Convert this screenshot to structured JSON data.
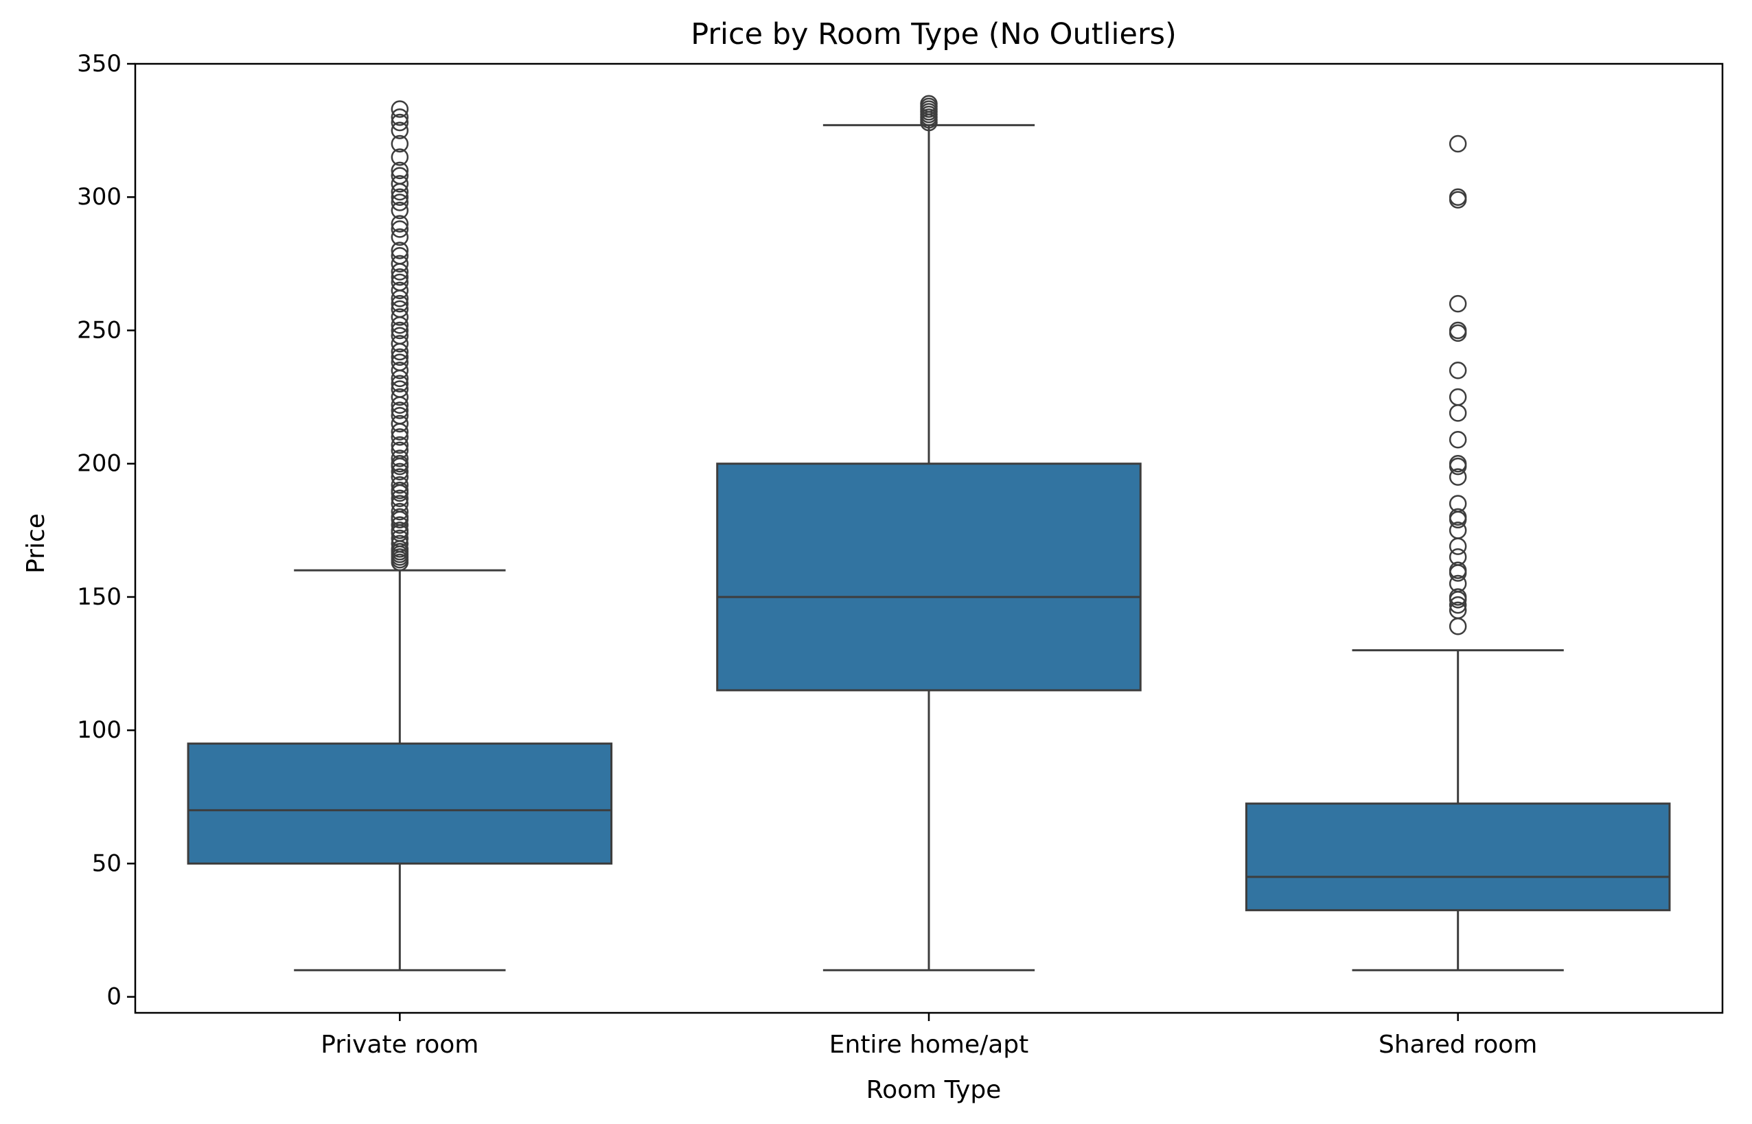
{
  "chart_data": {
    "type": "boxplot",
    "title": "Price by Room Type (No Outliers)",
    "xlabel": "Room Type",
    "ylabel": "Price",
    "ylim": [
      -6,
      350
    ],
    "yticks": [
      0,
      50,
      100,
      150,
      200,
      250,
      300,
      350
    ],
    "grid": false,
    "box_color": "#3274a1",
    "line_color": "#3d3d3d",
    "categories": [
      "Private room",
      "Entire home/apt",
      "Shared room"
    ],
    "boxes": [
      {
        "category": "Private room",
        "whisker_low": 10,
        "q1": 50,
        "median": 70,
        "q3": 95,
        "whisker_high": 160,
        "outliers": [
          163,
          164,
          165,
          166,
          167,
          168,
          170,
          172,
          174,
          175,
          177,
          179,
          180,
          182,
          185,
          187,
          189,
          190,
          192,
          195,
          197,
          199,
          200,
          202,
          205,
          207,
          210,
          212,
          215,
          218,
          220,
          222,
          225,
          228,
          230,
          232,
          235,
          238,
          240,
          242,
          245,
          248,
          250,
          252,
          255,
          258,
          260,
          262,
          265,
          268,
          270,
          272,
          275,
          278,
          280,
          285,
          288,
          290,
          295,
          298,
          300,
          302,
          305,
          308,
          310,
          315,
          320,
          325,
          328,
          330,
          333
        ]
      },
      {
        "category": "Entire home/apt",
        "whisker_low": 10,
        "q1": 115,
        "median": 150,
        "q3": 200,
        "whisker_high": 327,
        "outliers": [
          328,
          329,
          330,
          331,
          332,
          333,
          334,
          335
        ]
      },
      {
        "category": "Shared room",
        "whisker_low": 10,
        "q1": 32.5,
        "median": 45,
        "q3": 72.5,
        "whisker_high": 130,
        "outliers": [
          139,
          145,
          147,
          149,
          150,
          155,
          159,
          160,
          165,
          169,
          175,
          179,
          180,
          185,
          195,
          199,
          200,
          209,
          219,
          225,
          235,
          249,
          250,
          260,
          299,
          300,
          320
        ]
      }
    ]
  }
}
